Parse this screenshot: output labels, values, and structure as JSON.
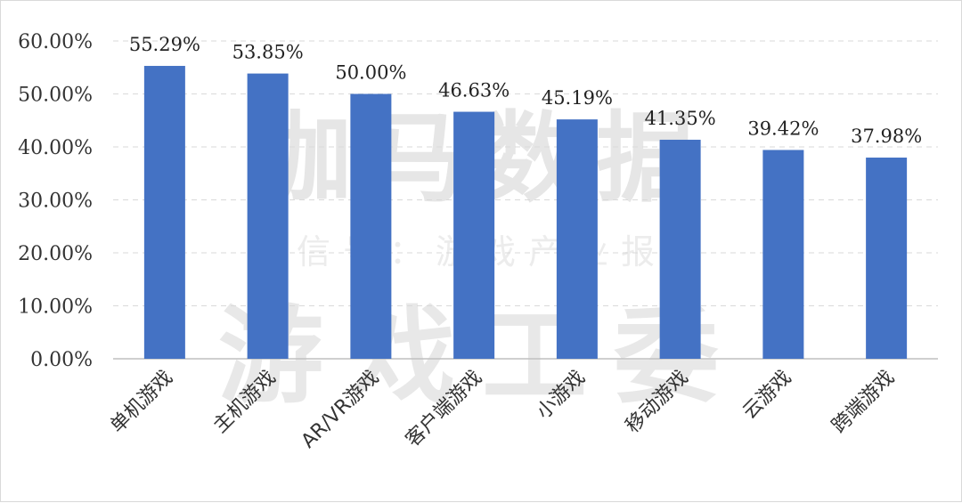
{
  "watermark": {
    "line1": "伽马数据",
    "line2": "微信号：游戏产业报告",
    "line3": "游戏工委"
  },
  "chart_data": {
    "type": "bar",
    "categories": [
      "单机游戏",
      "主机游戏",
      "AR/VR游戏",
      "客户端游戏",
      "小游戏",
      "移动游戏",
      "云游戏",
      "跨端游戏"
    ],
    "values": [
      55.29,
      53.85,
      50.0,
      46.63,
      45.19,
      41.35,
      39.42,
      37.98
    ],
    "data_labels": [
      "55.29%",
      "53.85%",
      "50.00%",
      "46.63%",
      "45.19%",
      "41.35%",
      "39.42%",
      "37.98%"
    ],
    "y_ticks": [
      0,
      10,
      20,
      30,
      40,
      50,
      60
    ],
    "y_tick_labels": [
      "0.00%",
      "10.00%",
      "20.00%",
      "30.00%",
      "40.00%",
      "50.00%",
      "60.00%"
    ],
    "ylim": [
      0,
      60
    ],
    "grid": true,
    "bar_color": "#4472c4",
    "grid_color": "#d9d9d9",
    "axis_color": "#bfbfbf"
  }
}
